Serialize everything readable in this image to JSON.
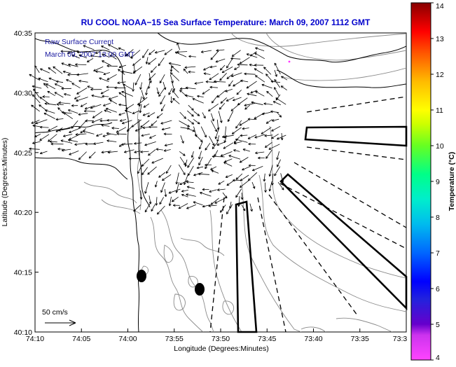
{
  "title": "RU COOL  NOAA−15  Sea Surface Temperature:  March 09, 2007 1112 GMT",
  "annotation": {
    "line1": "Raw Surface Current",
    "line2": "March 09, 2007 13:00 GMT"
  },
  "axes": {
    "xlabel": "Longitude (Degrees:Minutes)",
    "ylabel": "Latitude (Degrees:Minutes)",
    "xticks": [
      "74:10",
      "74:05",
      "74:00",
      "73:55",
      "73:50",
      "73:45",
      "73:40",
      "73:35",
      "73:3"
    ],
    "yticks": [
      "40:35",
      "40:30",
      "40:25",
      "40:20",
      "40:15",
      "40:10"
    ]
  },
  "scale": {
    "label": "50 cm/s"
  },
  "colorbar": {
    "label": "Temperature (°C)",
    "ticks": [
      "14",
      "13",
      "12",
      "11",
      "10",
      "9",
      "8",
      "7",
      "6",
      "5",
      "4"
    ],
    "min": 4,
    "max": 14
  },
  "colors": {
    "title": "#0000cc",
    "annotation": "#1a1aa0",
    "coastline": "#000000",
    "contour": "#8a8a8a",
    "vectors": "#000000",
    "colormap": [
      "#ff33ff",
      "#6600cc",
      "#0000ff",
      "#0077ff",
      "#00ccff",
      "#00ffb0",
      "#33ff33",
      "#aaff00",
      "#ffff00",
      "#ffcc00",
      "#ff7700",
      "#ff0000",
      "#cc0000",
      "#880000"
    ]
  }
}
